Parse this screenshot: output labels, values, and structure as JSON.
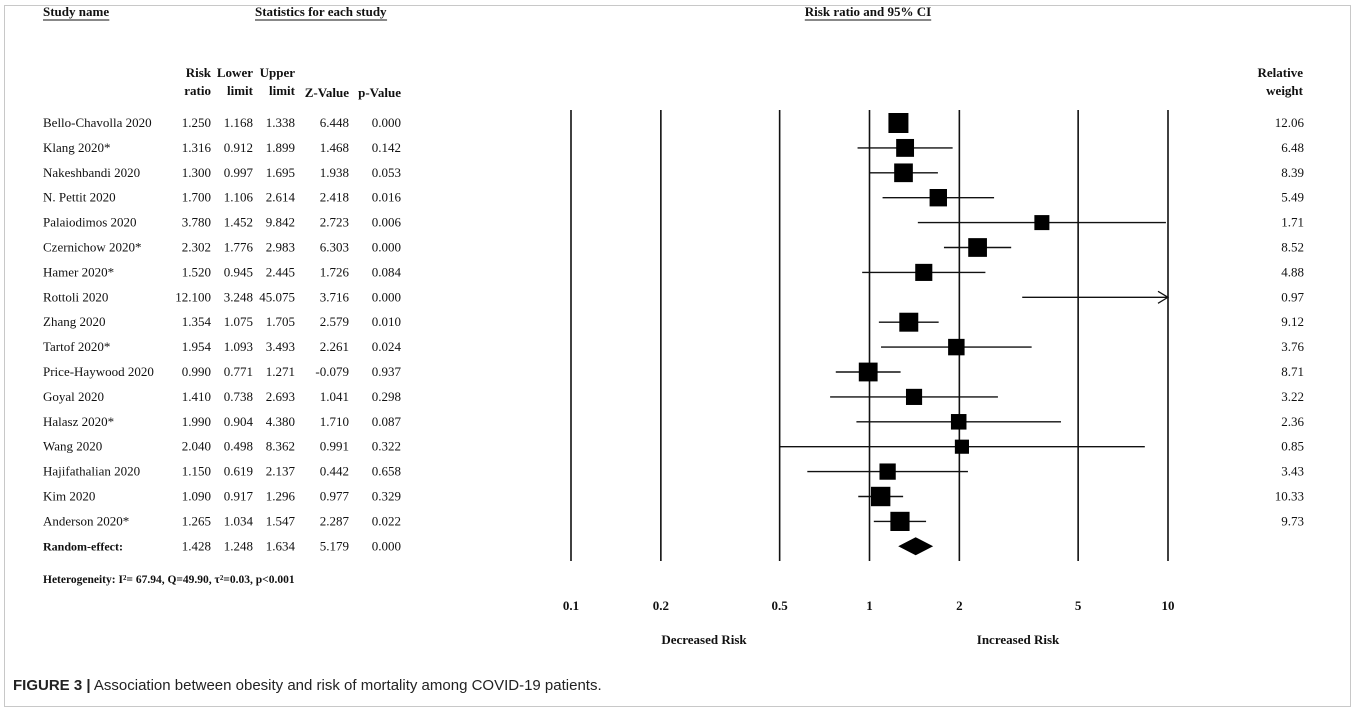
{
  "header": {
    "study_name": "Study name",
    "stats_group": "Statistics for each study",
    "plot_group": "Risk ratio and 95% CI",
    "relative_weight": [
      "Relative",
      "weight"
    ],
    "columns": [
      [
        "Risk",
        "ratio"
      ],
      [
        "Lower",
        "limit"
      ],
      [
        "Upper",
        "limit"
      ],
      [
        "Z-Value"
      ],
      [
        "p-Value"
      ]
    ]
  },
  "chart_data": {
    "type": "forest",
    "xscale": "log",
    "xlim": [
      0.1,
      10
    ],
    "xticks": [
      "0.1",
      "0.2",
      "0.5",
      "1",
      "2",
      "5",
      "10"
    ],
    "left_label": "Decreased Risk",
    "right_label": "Increased Risk",
    "studies": [
      {
        "name": "Bello-Chavolla 2020",
        "rr": "1.250",
        "lower": "1.168",
        "upper": "1.338",
        "z": "6.448",
        "p": "0.000",
        "weight": "12.06"
      },
      {
        "name": "Klang 2020*",
        "rr": "1.316",
        "lower": "0.912",
        "upper": "1.899",
        "z": "1.468",
        "p": "0.142",
        "weight": "6.48"
      },
      {
        "name": "Nakeshbandi 2020",
        "rr": "1.300",
        "lower": "0.997",
        "upper": "1.695",
        "z": "1.938",
        "p": "0.053",
        "weight": "8.39"
      },
      {
        "name": "N. Pettit 2020",
        "rr": "1.700",
        "lower": "1.106",
        "upper": "2.614",
        "z": "2.418",
        "p": "0.016",
        "weight": "5.49"
      },
      {
        "name": "Palaiodimos 2020",
        "rr": "3.780",
        "lower": "1.452",
        "upper": "9.842",
        "z": "2.723",
        "p": "0.006",
        "weight": "1.71"
      },
      {
        "name": "Czernichow 2020*",
        "rr": "2.302",
        "lower": "1.776",
        "upper": "2.983",
        "z": "6.303",
        "p": "0.000",
        "weight": "8.52"
      },
      {
        "name": "Hamer 2020*",
        "rr": "1.520",
        "lower": "0.945",
        "upper": "2.445",
        "z": "1.726",
        "p": "0.084",
        "weight": "4.88"
      },
      {
        "name": "Rottoli 2020",
        "rr": "12.100",
        "lower": "3.248",
        "upper": "45.075",
        "z": "3.716",
        "p": "0.000",
        "weight": "0.97"
      },
      {
        "name": "Zhang 2020",
        "rr": "1.354",
        "lower": "1.075",
        "upper": "1.705",
        "z": "2.579",
        "p": "0.010",
        "weight": "9.12"
      },
      {
        "name": "Tartof 2020*",
        "rr": "1.954",
        "lower": "1.093",
        "upper": "3.493",
        "z": "2.261",
        "p": "0.024",
        "weight": "3.76"
      },
      {
        "name": "Price-Haywood 2020",
        "rr": "0.990",
        "lower": "0.771",
        "upper": "1.271",
        "z": "-0.079",
        "p": "0.937",
        "weight": "8.71"
      },
      {
        "name": "Goyal 2020",
        "rr": "1.410",
        "lower": "0.738",
        "upper": "2.693",
        "z": "1.041",
        "p": "0.298",
        "weight": "3.22"
      },
      {
        "name": "Halasz 2020*",
        "rr": "1.990",
        "lower": "0.904",
        "upper": "4.380",
        "z": "1.710",
        "p": "0.087",
        "weight": "2.36"
      },
      {
        "name": "Wang 2020",
        "rr": "2.040",
        "lower": "0.498",
        "upper": "8.362",
        "z": "0.991",
        "p": "0.322",
        "weight": "0.85"
      },
      {
        "name": "Hajifathalian 2020",
        "rr": "1.150",
        "lower": "0.619",
        "upper": "2.137",
        "z": "0.442",
        "p": "0.658",
        "weight": "3.43"
      },
      {
        "name": "Kim 2020",
        "rr": "1.090",
        "lower": "0.917",
        "upper": "1.296",
        "z": "0.977",
        "p": "0.329",
        "weight": "10.33"
      },
      {
        "name": "Anderson 2020*",
        "rr": "1.265",
        "lower": "1.034",
        "upper": "1.547",
        "z": "2.287",
        "p": "0.022",
        "weight": "9.73"
      }
    ],
    "pooled": {
      "name": "Random-effect",
      "rr": "1.428",
      "lower": "1.248",
      "upper": "1.634",
      "z": "5.179",
      "p": "0.000"
    }
  },
  "heterogeneity": "Heterogeneity: I²= 67.94, Q=49.90, τ²=0.03, p<0.001",
  "caption": {
    "label": "FIGURE 3 |",
    "text": " Association between obesity and risk of mortality among COVID-19 patients."
  }
}
